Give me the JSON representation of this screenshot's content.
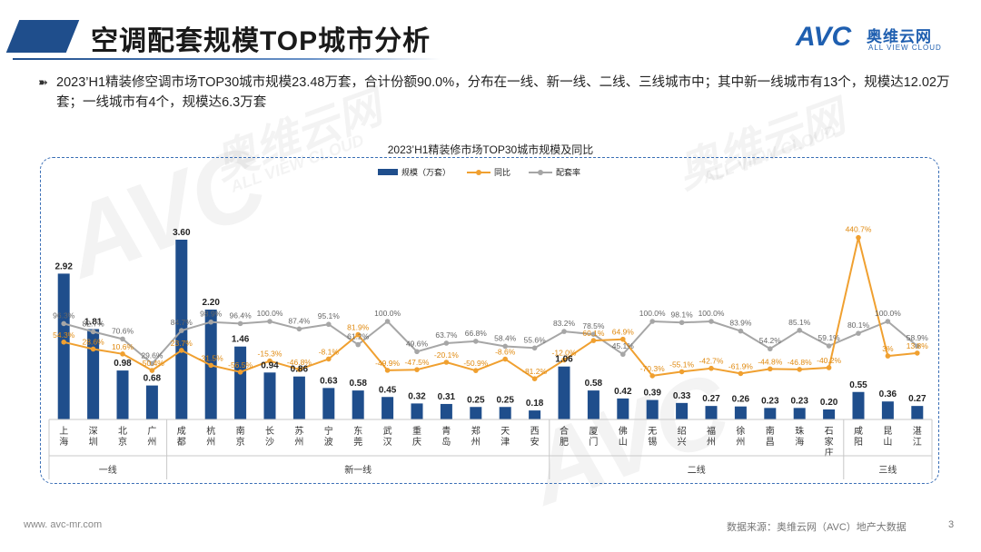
{
  "header": {
    "title": "空调配套规模TOP城市分析",
    "logo_avc": "AVC",
    "logo_cn": "奥维云网",
    "logo_en": "ALL VIEW CLOUD"
  },
  "bullet": {
    "text": "2023’H1精装修空调市场TOP30城市规模23.48万套，合计份额90.0%，分布在一线、新一线、二线、三线城市中；其中新一线城市有13个，规模达12.02万套；一线城市有4个，规模达6.3万套"
  },
  "chart_data": {
    "type": "bar",
    "title": "2023’H1精装修市场TOP30城市规模及同比",
    "legend": [
      "规模（万套）",
      "同比",
      "配套率"
    ],
    "categories": [
      "上海",
      "深圳",
      "北京",
      "广州",
      "成都",
      "杭州",
      "南京",
      "长沙",
      "苏州",
      "宁波",
      "东莞",
      "武汉",
      "重庆",
      "青岛",
      "郑州",
      "天津",
      "西安",
      "合肥",
      "厦门",
      "佛山",
      "无锡",
      "绍兴",
      "福州",
      "徐州",
      "南昌",
      "珠海",
      "石家庄",
      "咸阳",
      "昆山",
      "湛江"
    ],
    "category_labels": [
      "上海",
      "深圳",
      "北京",
      "广州",
      "成都",
      "杭州",
      "南京",
      "长沙",
      "苏州",
      "宁波",
      "东莞",
      "武汉",
      "重庆",
      "青岛",
      "郑州",
      "天津",
      "西安",
      "合肥",
      "厦门",
      "佛山",
      "无锡",
      "绍兴",
      "福州",
      "徐州",
      "南昌",
      "珠海",
      "石家庄",
      "咸阳",
      "昆山",
      "湛江"
    ],
    "series": [
      {
        "name": "规模（万套）",
        "kind": "bar",
        "color": "#1f4e8c",
        "values": [
          2.92,
          1.81,
          0.98,
          0.68,
          3.6,
          2.2,
          1.46,
          0.94,
          0.86,
          0.63,
          0.58,
          0.45,
          0.32,
          0.31,
          0.25,
          0.25,
          0.18,
          1.06,
          0.58,
          0.42,
          0.39,
          0.33,
          0.27,
          0.26,
          0.23,
          0.23,
          0.2,
          0.55,
          0.36,
          0.27
        ],
        "labels": [
          "2.92",
          "1.81",
          "0.98",
          "0.68",
          "3.60",
          "2.20",
          "1.46",
          "0.94",
          "0.86",
          "0.63",
          "0.58",
          "0.45",
          "0.32",
          "0.31",
          "0.25",
          "0.25",
          "0.18",
          "1.06",
          "0.58",
          "0.42",
          "0.39",
          "0.33",
          "0.27",
          "0.26",
          "0.23",
          "0.23",
          "0.20",
          "0.55",
          "0.36",
          "0.27"
        ]
      },
      {
        "name": "同比",
        "kind": "line",
        "color": "#f0a030",
        "values": [
          54.3,
          28.6,
          10.6,
          -50.4,
          23.7,
          -31.5,
          -56.5,
          -15.3,
          -46.8,
          -8.1,
          81.9,
          -49.9,
          -47.5,
          -20.1,
          -50.9,
          -8.6,
          -81.2,
          -12.0,
          60.1,
          64.9,
          -70.3,
          -55.1,
          -42.7,
          -61.9,
          -44.8,
          -46.8,
          -40.2,
          440.7,
          3.0,
          13.8
        ],
        "labels": [
          "54.3%",
          "28.6%",
          "10.6%",
          "-50.4%",
          "23.7%",
          "-31.5%",
          "-56.5%",
          "-15.3%",
          "-46.8%",
          "-8.1%",
          "81.9%",
          "-49.9%",
          "-47.5%",
          "-20.1%",
          "-50.9%",
          "-8.6%",
          "-81.2%",
          "-12.0%",
          "60.1%",
          "64.9%",
          "-70.3%",
          "-55.1%",
          "-42.7%",
          "-61.9%",
          "-44.8%",
          "-46.8%",
          "-40.2%",
          "440.7%",
          "3%",
          "13.8%"
        ]
      },
      {
        "name": "配套率",
        "kind": "line",
        "color": "#a6a6a6",
        "values": [
          96.3,
          82.7,
          70.6,
          29.6,
          84.7,
          98.9,
          96.4,
          100.0,
          87.4,
          95.1,
          61.2,
          100.0,
          49.6,
          63.7,
          66.8,
          58.4,
          55.6,
          83.2,
          78.5,
          45.1,
          100.0,
          98.1,
          100.0,
          83.9,
          54.2,
          85.1,
          59.1,
          80.1,
          100.0,
          58.9
        ],
        "labels": [
          "96.3%",
          "82.7%",
          "70.6%",
          "29.6%",
          "84.7%",
          "98.9%",
          "96.4%",
          "100.0%",
          "87.4%",
          "95.1%",
          "61.2%",
          "100.0%",
          "49.6%",
          "63.7%",
          "66.8%",
          "58.4%",
          "55.6%",
          "83.2%",
          "78.5%",
          "45.1%",
          "100.0%",
          "98.1%",
          "100.0%",
          "83.9%",
          "54.2%",
          "85.1%",
          "59.1%",
          "80.1%",
          "100.0%",
          "58.9%"
        ]
      }
    ],
    "tiers": [
      {
        "name": "一线",
        "start": 0,
        "end": 3
      },
      {
        "name": "新一线",
        "start": 4,
        "end": 16
      },
      {
        "name": "二线",
        "start": 17,
        "end": 26
      },
      {
        "name": "三线",
        "start": 27,
        "end": 29
      }
    ]
  },
  "footer": {
    "website": "www. avc-mr.com",
    "source": "数据来源：奥维云网（AVC）地产大数据",
    "page": "3"
  },
  "watermark": {
    "avc": "AVC",
    "cn": "奥维云网",
    "en": "ALL VIEW CLOUD"
  }
}
